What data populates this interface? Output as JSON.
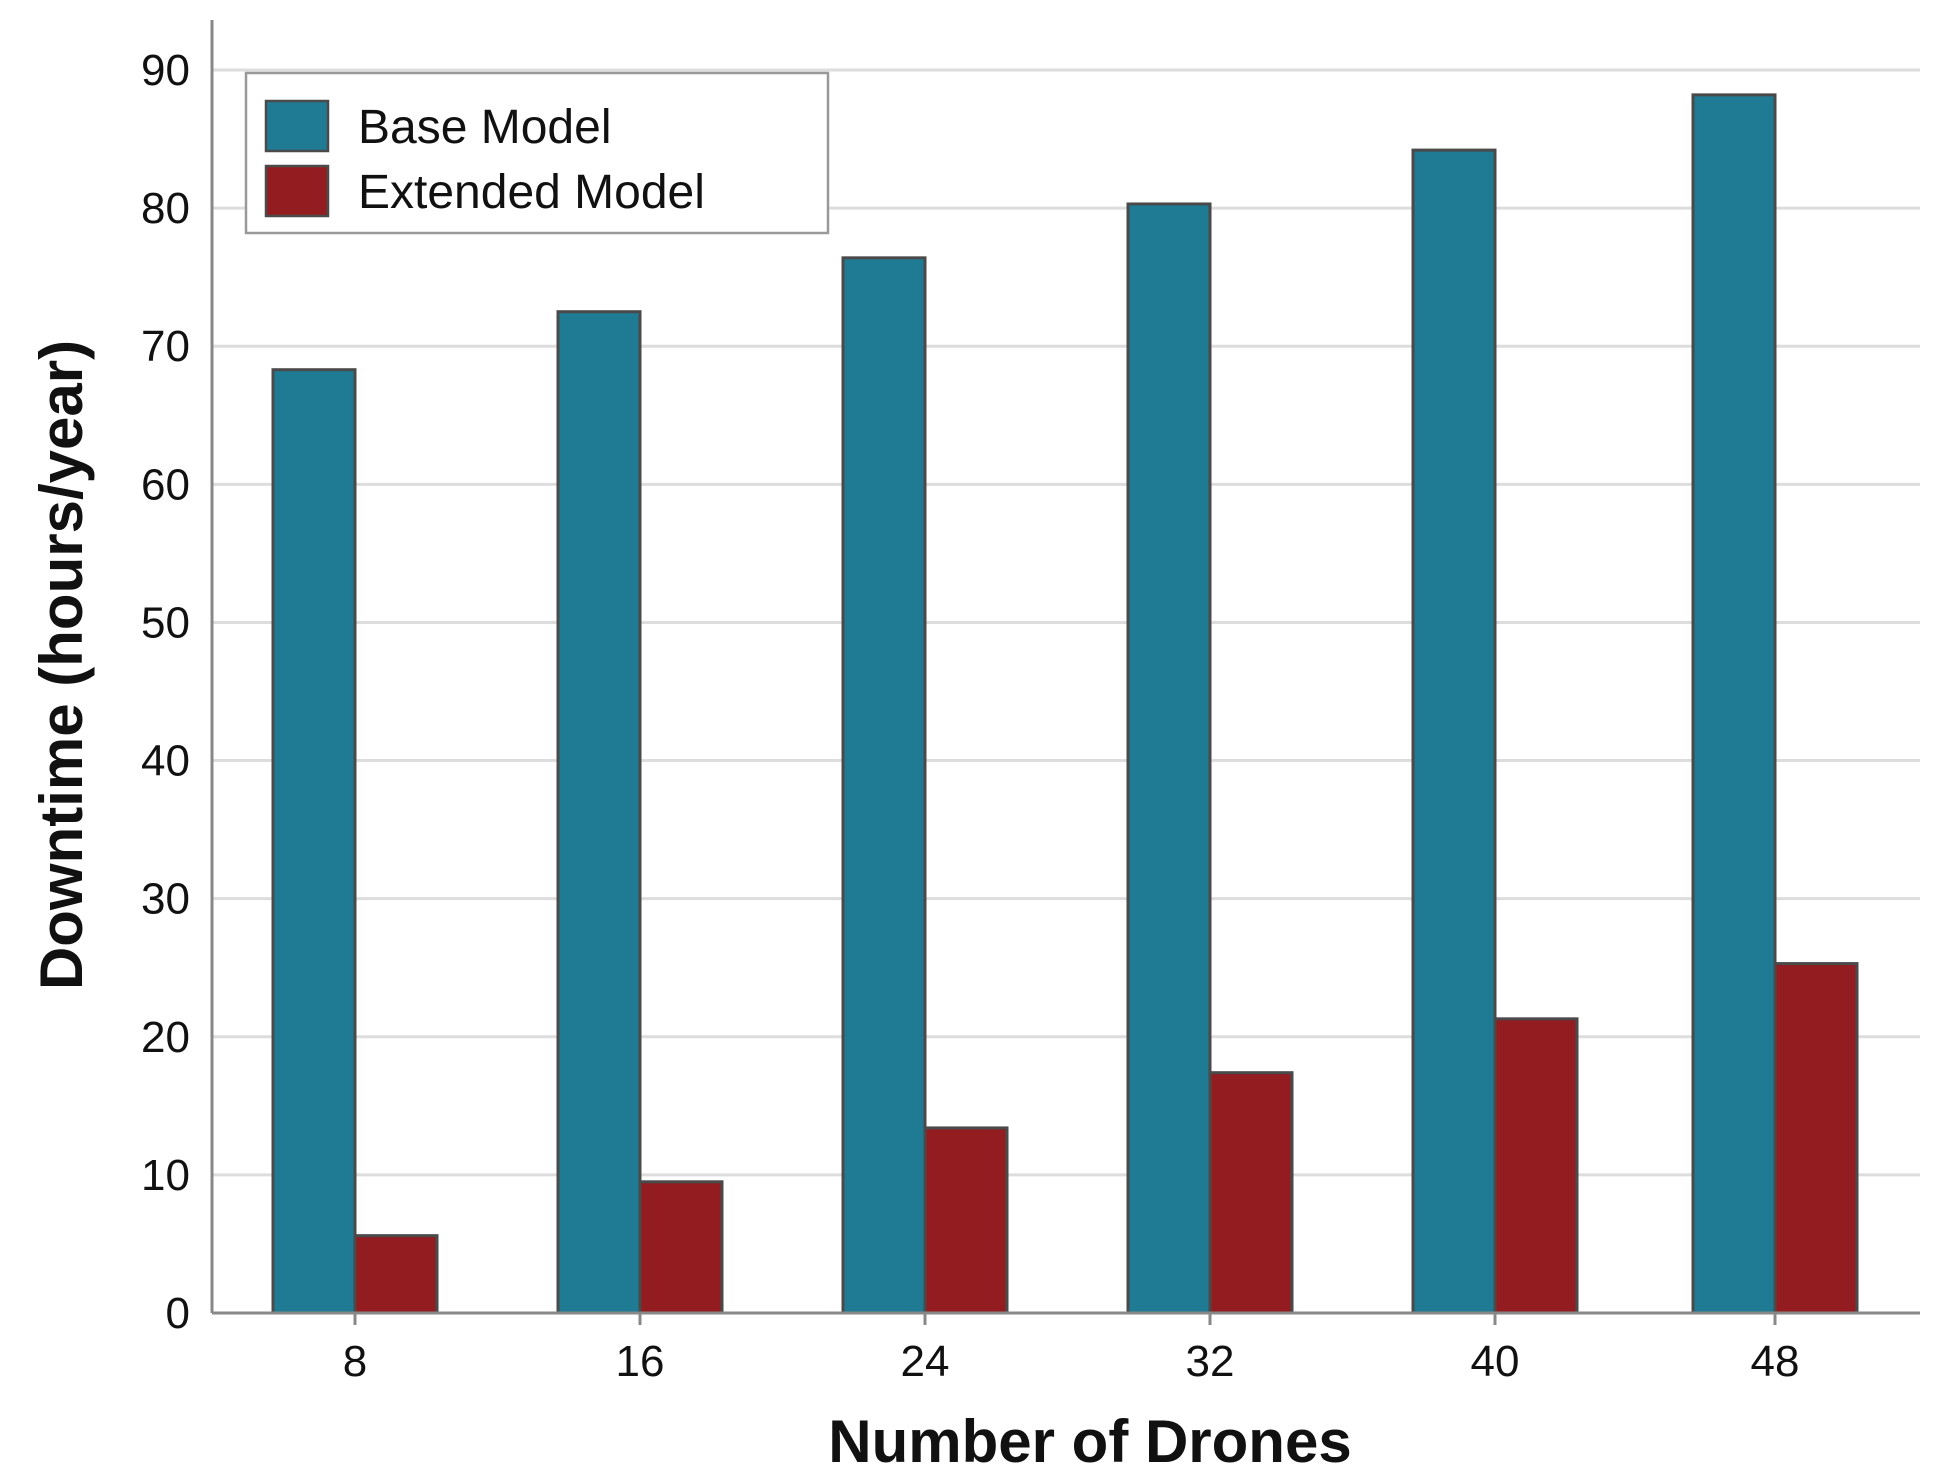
{
  "chart_data": {
    "type": "bar",
    "title": "",
    "xlabel": "Number of Drones",
    "ylabel": "Downtime (hours/year)",
    "categories": [
      "8",
      "16",
      "24",
      "32",
      "40",
      "48"
    ],
    "series": [
      {
        "name": "Base Model",
        "color": "#1f7a94",
        "values": [
          68.3,
          72.5,
          76.4,
          80.3,
          84.2,
          88.2
        ]
      },
      {
        "name": "Extended Model",
        "color": "#921c1f",
        "values": [
          5.6,
          9.5,
          13.4,
          17.4,
          21.3,
          25.3
        ]
      }
    ],
    "ylim": [
      0,
      90
    ],
    "yticks": [
      "0",
      "10",
      "20",
      "30",
      "40",
      "50",
      "60",
      "70",
      "80",
      "90"
    ],
    "grid": true,
    "legend": "top-left",
    "colors": {
      "bar_edge": "#4a4a4a",
      "grid": "#dddddd",
      "axis": "#888888"
    }
  }
}
